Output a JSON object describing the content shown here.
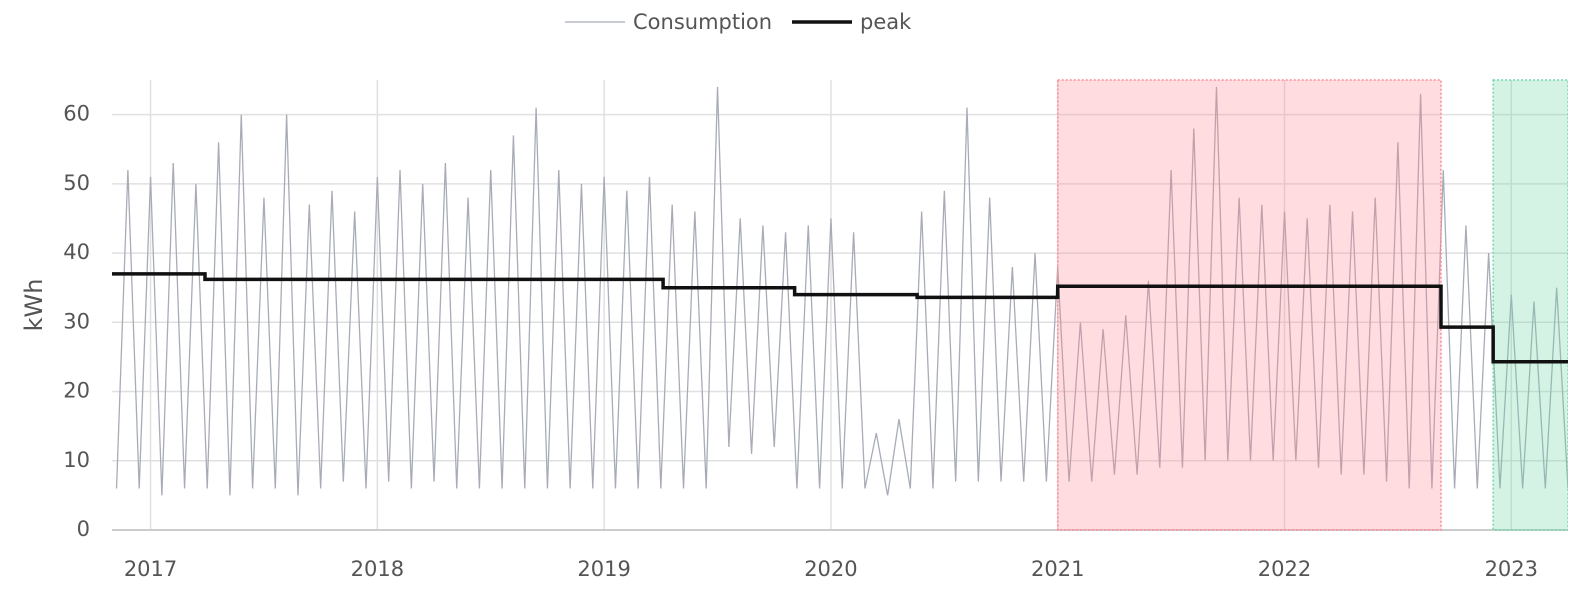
{
  "chart_data": {
    "type": "line",
    "y_label": "kWh",
    "xlim": [
      2016.83,
      2023.25
    ],
    "ylim": [
      0,
      65
    ],
    "xticks": [
      2017,
      2018,
      2019,
      2020,
      2021,
      2022,
      2023
    ],
    "yticks": [
      0,
      10,
      20,
      30,
      40,
      50,
      60
    ],
    "grid": true,
    "legend": "top",
    "regions": [
      {
        "x0": 2021.0,
        "x1": 2022.69,
        "color": "#ff8a96"
      },
      {
        "x0": 2022.92,
        "x1": 2023.25,
        "color": "#6fd8a8"
      }
    ],
    "series": [
      {
        "name": "Consumption",
        "color": "#a7acb7",
        "x": [
          2016.85,
          2016.9,
          2016.95,
          2017.0,
          2017.05,
          2017.1,
          2017.15,
          2017.2,
          2017.25,
          2017.3,
          2017.35,
          2017.4,
          2017.45,
          2017.5,
          2017.55,
          2017.6,
          2017.65,
          2017.7,
          2017.75,
          2017.8,
          2017.85,
          2017.9,
          2017.95,
          2018.0,
          2018.05,
          2018.1,
          2018.15,
          2018.2,
          2018.25,
          2018.3,
          2018.35,
          2018.4,
          2018.45,
          2018.5,
          2018.55,
          2018.6,
          2018.65,
          2018.7,
          2018.75,
          2018.8,
          2018.85,
          2018.9,
          2018.95,
          2019.0,
          2019.05,
          2019.1,
          2019.15,
          2019.2,
          2019.25,
          2019.3,
          2019.35,
          2019.4,
          2019.45,
          2019.5,
          2019.55,
          2019.6,
          2019.65,
          2019.7,
          2019.75,
          2019.8,
          2019.85,
          2019.9,
          2019.95,
          2020.0,
          2020.05,
          2020.1,
          2020.15,
          2020.2,
          2020.25,
          2020.3,
          2020.35,
          2020.4,
          2020.45,
          2020.5,
          2020.55,
          2020.6,
          2020.65,
          2020.7,
          2020.75,
          2020.8,
          2020.85,
          2020.9,
          2020.95,
          2021.0,
          2021.05,
          2021.1,
          2021.15,
          2021.2,
          2021.25,
          2021.3,
          2021.35,
          2021.4,
          2021.45,
          2021.5,
          2021.55,
          2021.6,
          2021.65,
          2021.7,
          2021.75,
          2021.8,
          2021.85,
          2021.9,
          2021.95,
          2022.0,
          2022.05,
          2022.1,
          2022.15,
          2022.2,
          2022.25,
          2022.3,
          2022.35,
          2022.4,
          2022.45,
          2022.5,
          2022.55,
          2022.6,
          2022.65,
          2022.7,
          2022.75,
          2022.8,
          2022.85,
          2022.9,
          2022.95,
          2023.0,
          2023.05,
          2023.1,
          2023.15,
          2023.2,
          2023.25
        ],
        "values": [
          6,
          52,
          6,
          51,
          5,
          53,
          6,
          50,
          6,
          56,
          5,
          60,
          6,
          48,
          6,
          60,
          5,
          47,
          6,
          49,
          7,
          46,
          6,
          51,
          7,
          52,
          6,
          50,
          7,
          53,
          6,
          48,
          6,
          52,
          6,
          57,
          6,
          61,
          6,
          52,
          6,
          50,
          6,
          51,
          6,
          49,
          6,
          51,
          6,
          47,
          6,
          46,
          6,
          64,
          12,
          45,
          11,
          44,
          12,
          43,
          6,
          44,
          6,
          45,
          6,
          43,
          6,
          14,
          5,
          16,
          6,
          46,
          6,
          49,
          7,
          61,
          7,
          48,
          7,
          38,
          7,
          40,
          7,
          38,
          7,
          30,
          7,
          29,
          8,
          31,
          8,
          36,
          9,
          52,
          9,
          58,
          10,
          64,
          10,
          48,
          10,
          47,
          10,
          46,
          10,
          45,
          9,
          47,
          8,
          46,
          8,
          48,
          7,
          56,
          6,
          63,
          6,
          52,
          6,
          44,
          6,
          40,
          6,
          34,
          6,
          33,
          6,
          35,
          6
        ]
      },
      {
        "name": "peak",
        "color": "#111111",
        "x": [
          2016.83,
          2017.24,
          2017.24,
          2019.26,
          2019.26,
          2019.84,
          2019.84,
          2020.38,
          2020.38,
          2021.0,
          2021.0,
          2022.69,
          2022.69,
          2022.92,
          2022.92,
          2023.25
        ],
        "values": [
          37,
          37,
          36.2,
          36.2,
          35,
          35,
          34,
          34,
          33.6,
          33.6,
          35.2,
          35.2,
          29.3,
          29.3,
          24.3,
          24.3
        ]
      }
    ]
  }
}
